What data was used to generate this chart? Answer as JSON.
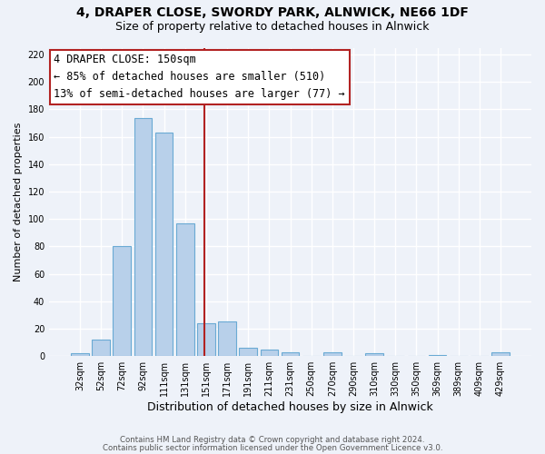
{
  "title": "4, DRAPER CLOSE, SWORDY PARK, ALNWICK, NE66 1DF",
  "subtitle": "Size of property relative to detached houses in Alnwick",
  "xlabel": "Distribution of detached houses by size in Alnwick",
  "ylabel": "Number of detached properties",
  "bar_labels": [
    "32sqm",
    "52sqm",
    "72sqm",
    "92sqm",
    "111sqm",
    "131sqm",
    "151sqm",
    "171sqm",
    "191sqm",
    "211sqm",
    "231sqm",
    "250sqm",
    "270sqm",
    "290sqm",
    "310sqm",
    "330sqm",
    "350sqm",
    "369sqm",
    "389sqm",
    "409sqm",
    "429sqm"
  ],
  "bar_values": [
    2,
    12,
    80,
    174,
    163,
    97,
    24,
    25,
    6,
    5,
    3,
    0,
    3,
    0,
    2,
    0,
    0,
    1,
    0,
    0,
    3
  ],
  "bar_color": "#b8d0ea",
  "bar_edge_color": "#6aaad4",
  "vline_color": "#b22222",
  "ylim": [
    0,
    225
  ],
  "yticks": [
    0,
    20,
    40,
    60,
    80,
    100,
    120,
    140,
    160,
    180,
    200,
    220
  ],
  "annotation_title": "4 DRAPER CLOSE: 150sqm",
  "annotation_line1": "← 85% of detached houses are smaller (510)",
  "annotation_line2": "13% of semi-detached houses are larger (77) →",
  "annotation_box_color": "#b22222",
  "footer_line1": "Contains HM Land Registry data © Crown copyright and database right 2024.",
  "footer_line2": "Contains public sector information licensed under the Open Government Licence v3.0.",
  "bg_color": "#eef2f9",
  "grid_color": "#ffffff",
  "title_fontsize": 10,
  "subtitle_fontsize": 9
}
